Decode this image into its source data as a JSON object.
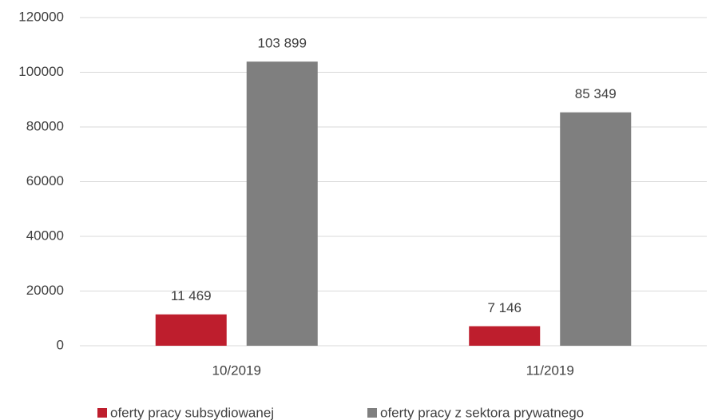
{
  "chart_data": {
    "type": "bar",
    "categories": [
      "10/2019",
      "11/2019"
    ],
    "series": [
      {
        "name": "oferty pracy subsydiowanej",
        "color": "#be1e2d",
        "values": [
          11469,
          7146
        ],
        "value_labels": [
          "11 469",
          "7 146"
        ]
      },
      {
        "name": "oferty pracy z sektora prywatnego",
        "color": "#7f7f7f",
        "values": [
          103899,
          85349
        ],
        "value_labels": [
          "103 899",
          "85 349"
        ]
      }
    ],
    "ylim": [
      0,
      120000
    ],
    "yticks": [
      0,
      20000,
      40000,
      60000,
      80000,
      100000,
      120000
    ],
    "grid": true,
    "legend": "bottom"
  }
}
